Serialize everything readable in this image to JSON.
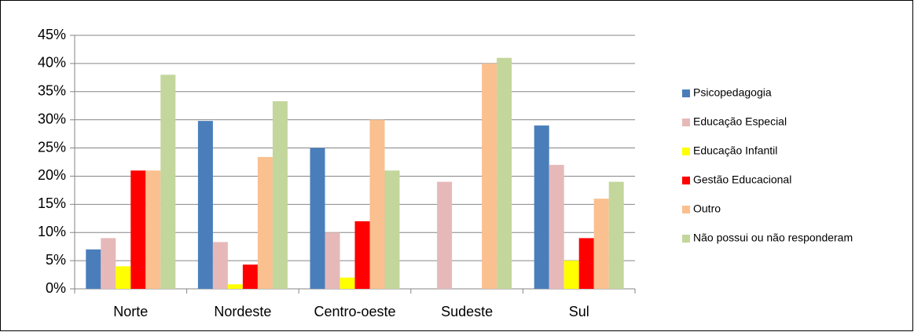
{
  "chart_data": {
    "type": "bar",
    "categories": [
      "Norte",
      "Nordeste",
      "Centro-oeste",
      "Sudeste",
      "Sul"
    ],
    "series": [
      {
        "name": "Psicopedagogia",
        "color": "#4a7ebb",
        "values": [
          7,
          29.8,
          25,
          0,
          29
        ]
      },
      {
        "name": "Educação Especial",
        "color": "#e6b9b8",
        "values": [
          9,
          8.3,
          10,
          19,
          22
        ]
      },
      {
        "name": "Educação Infantil",
        "color": "#ffff00",
        "values": [
          4,
          0.8,
          2,
          0,
          5
        ]
      },
      {
        "name": "Gestão Educacional",
        "color": "#ff0000",
        "values": [
          21,
          4.3,
          12,
          0,
          9
        ]
      },
      {
        "name": "Outro",
        "color": "#fac090",
        "values": [
          21,
          23.4,
          30,
          40,
          16
        ]
      },
      {
        "name": "Não possui ou não responderam",
        "color": "#c3d69b",
        "values": [
          38,
          33.3,
          21,
          41,
          19
        ]
      }
    ],
    "ylim": [
      0,
      45
    ],
    "yticks": [
      {
        "value": 0,
        "label": "0%"
      },
      {
        "value": 5,
        "label": "5%"
      },
      {
        "value": 10,
        "label": "10%"
      },
      {
        "value": 15,
        "label": "15%"
      },
      {
        "value": 20,
        "label": "20%"
      },
      {
        "value": 25,
        "label": "25%"
      },
      {
        "value": 30,
        "label": "30%"
      },
      {
        "value": 35,
        "label": "35%"
      },
      {
        "value": 40,
        "label": "40%"
      },
      {
        "value": 45,
        "label": "45%"
      }
    ],
    "grid": true,
    "legend": "right"
  }
}
